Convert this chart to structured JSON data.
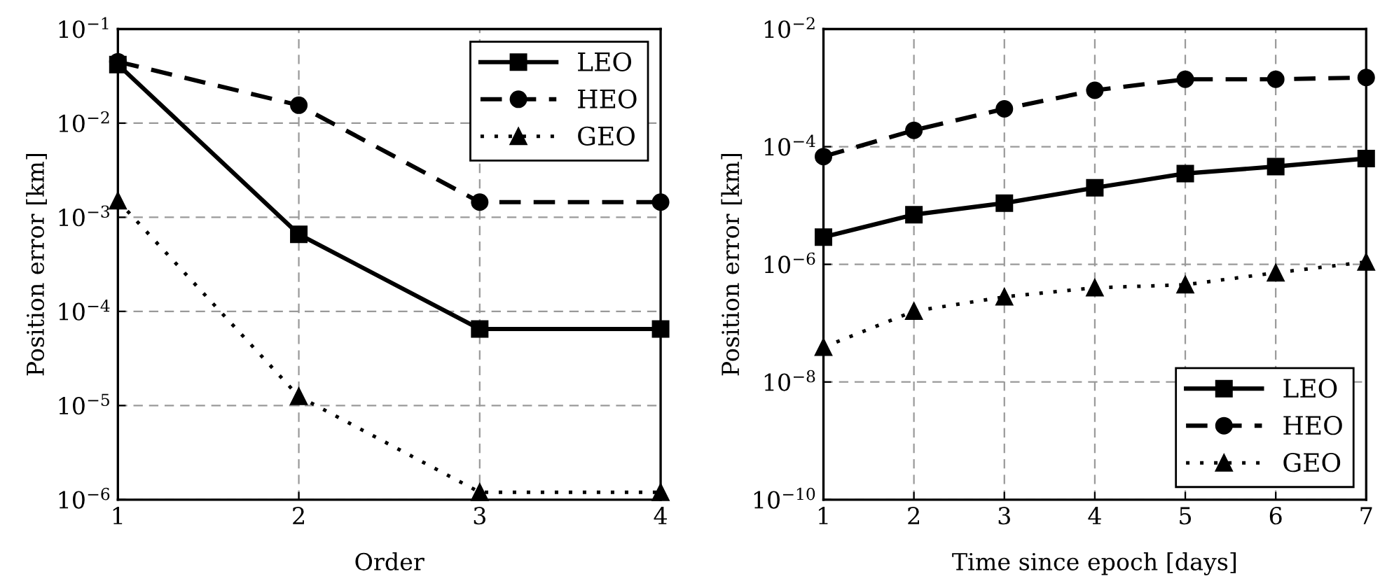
{
  "chart_data": [
    {
      "type": "line",
      "xlabel": "Order",
      "ylabel": "Position error [km]",
      "log": "y",
      "grid": true,
      "legend": "top right",
      "x": [
        1,
        2,
        3,
        4
      ],
      "xlim": [
        1,
        4
      ],
      "xticks": [
        1,
        2,
        3,
        4
      ],
      "ylim": [
        1e-06,
        0.1
      ],
      "yticks": [
        {
          "value": 1e-06,
          "label": "10$^{−6}$"
        },
        {
          "value": 1e-05,
          "label": "10$^{−5}$"
        },
        {
          "value": 0.0001,
          "label": "10$^{−4}$"
        },
        {
          "value": 0.001,
          "label": "10$^{−3}$"
        },
        {
          "value": 0.01,
          "label": "10$^{−2}$"
        },
        {
          "value": 0.1,
          "label": "10$^{−1}$"
        }
      ],
      "series": [
        {
          "name": "LEO",
          "color": "#000000",
          "marker": "square",
          "line_style": "solid",
          "values": [
            0.042,
            0.00066,
            6.5e-05,
            6.5e-05
          ]
        },
        {
          "name": "HEO",
          "color": "#000000",
          "marker": "circle",
          "line_style": "dashed",
          "values": [
            0.045,
            0.0155,
            0.00145,
            0.00145
          ]
        },
        {
          "name": "GEO",
          "color": "#000000",
          "marker": "triangle",
          "line_style": "dotted",
          "values": [
            0.0015,
            1.25e-05,
            1.2e-06,
            1.2e-06
          ]
        }
      ]
    },
    {
      "type": "line",
      "xlabel": "Time since epoch [days]",
      "ylabel": "Position error [km]",
      "log": "y",
      "grid": true,
      "legend": "bottom right",
      "x": [
        1,
        2,
        3,
        4,
        5,
        6,
        7
      ],
      "xlim": [
        1,
        7
      ],
      "xticks": [
        1,
        2,
        3,
        4,
        5,
        6,
        7
      ],
      "ylim": [
        1e-10,
        0.01
      ],
      "yticks": [
        {
          "value": 1e-10,
          "label": "10$^{−10}$"
        },
        {
          "value": 1e-08,
          "label": "10$^{−8}$"
        },
        {
          "value": 1e-06,
          "label": "10$^{−6}$"
        },
        {
          "value": 0.0001,
          "label": "10$^{−4}$"
        },
        {
          "value": 0.01,
          "label": "10$^{−2}$"
        }
      ],
      "series": [
        {
          "name": "LEO",
          "color": "#000000",
          "marker": "square",
          "line_style": "solid",
          "values": [
            2.9e-06,
            7e-06,
            1.1e-05,
            2e-05,
            3.5e-05,
            4.6e-05,
            6.3e-05
          ]
        },
        {
          "name": "HEO",
          "color": "#000000",
          "marker": "circle",
          "line_style": "dashed",
          "values": [
            6.8e-05,
            0.00019,
            0.00044,
            0.00091,
            0.0014,
            0.0014,
            0.0015
          ]
        },
        {
          "name": "GEO",
          "color": "#000000",
          "marker": "triangle",
          "line_style": "dotted",
          "values": [
            3.9e-08,
            1.6e-07,
            2.8e-07,
            4e-07,
            4.5e-07,
            7.2e-07,
            1.1e-06
          ]
        }
      ]
    }
  ]
}
